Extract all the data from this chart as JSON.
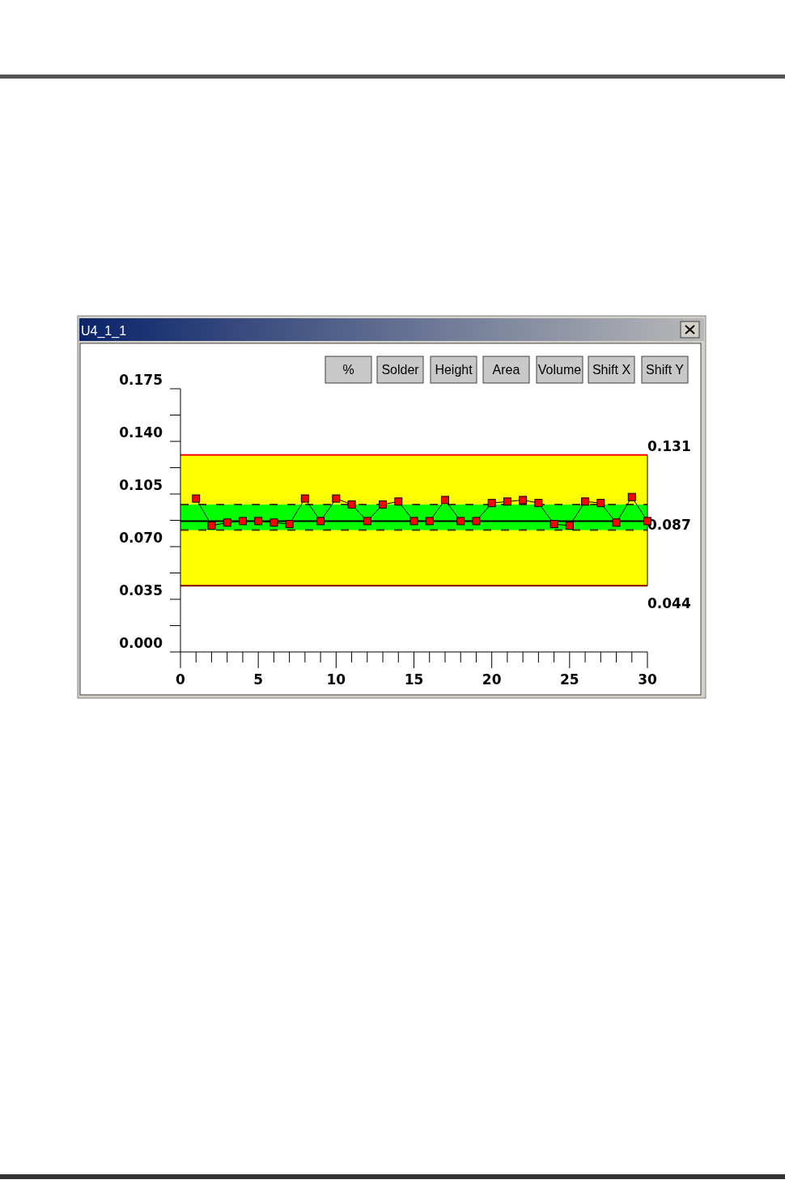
{
  "chart_data": {
    "type": "line",
    "title": "U4_1_1",
    "annotations": [
      "%",
      "Solder",
      "Height",
      "Area",
      "Volume",
      "Shift X",
      "Shift Y"
    ],
    "x": [
      1,
      2,
      3,
      4,
      5,
      6,
      7,
      8,
      9,
      10,
      11,
      12,
      13,
      14,
      15,
      16,
      17,
      18,
      19,
      20,
      21,
      22,
      23,
      24,
      25,
      26,
      27,
      28,
      29,
      30
    ],
    "series": [
      {
        "color": "#ff0000",
        "values": [
          0.102,
          0.084,
          0.086,
          0.087,
          0.087,
          0.086,
          0.085,
          0.102,
          0.087,
          0.102,
          0.098,
          0.087,
          0.098,
          0.1,
          0.087,
          0.087,
          0.101,
          0.087,
          0.087,
          0.099,
          0.1,
          0.101,
          0.099,
          0.085,
          0.084,
          0.1,
          0.099,
          0.086,
          0.103,
          0.087
        ]
      }
    ],
    "marker": "square",
    "line_style": "solid",
    "xlim": [
      0,
      30
    ],
    "ylim": [
      0,
      0.175
    ],
    "xticks": [
      0,
      {
        "value": 1,
        "label": null
      },
      {
        "value": 2,
        "label": null
      },
      {
        "value": 3,
        "label": null
      },
      {
        "value": 4,
        "label": null
      },
      5,
      {
        "value": 6,
        "label": null
      },
      {
        "value": 7,
        "label": null
      },
      {
        "value": 8,
        "label": null
      },
      {
        "value": 9,
        "label": null
      },
      10,
      {
        "value": 11,
        "label": null
      },
      {
        "value": 12,
        "label": null
      },
      {
        "value": 13,
        "label": null
      },
      {
        "value": 14,
        "label": null
      },
      15,
      {
        "value": 16,
        "label": null
      },
      {
        "value": 17,
        "label": null
      },
      {
        "value": 18,
        "label": null
      },
      {
        "value": 19,
        "label": null
      },
      20,
      {
        "value": 21,
        "label": null
      },
      {
        "value": 22,
        "label": null
      },
      {
        "value": 23,
        "label": null
      },
      {
        "value": 24,
        "label": null
      },
      25,
      {
        "value": 26,
        "label": null
      },
      {
        "value": 27,
        "label": null
      },
      {
        "value": 28,
        "label": null
      },
      {
        "value": 29,
        "label": null
      },
      30
    ],
    "yticks": [
      {
        "value": 0,
        "label": "0.000"
      },
      {
        "value": 0.0175,
        "label": null
      },
      {
        "value": 0.035,
        "label": "0.035"
      },
      {
        "value": 0.0525,
        "label": null
      },
      {
        "value": 0.07,
        "label": "0.070"
      },
      {
        "value": 0.0875,
        "label": null
      },
      {
        "value": 0.105,
        "label": "0.105"
      },
      {
        "value": 0.1225,
        "label": null
      },
      {
        "value": 0.14,
        "label": "0.140"
      },
      {
        "value": 0.1575,
        "label": null
      },
      {
        "value": 0.175,
        "label": "0.175"
      }
    ],
    "bands": [
      {
        "axis": "y",
        "from": 0.044,
        "to": 0.131,
        "color": "#ffff00"
      },
      {
        "axis": "y",
        "from": 0.081,
        "to": 0.098,
        "color": "#00ff00"
      }
    ],
    "ref_lines": [
      {
        "axis": "y",
        "value": 0.131,
        "label": "0.131",
        "color": "#ff0000"
      },
      {
        "axis": "y",
        "value": 0.044,
        "label": "0.044",
        "color": "#800000"
      },
      {
        "axis": "y",
        "value": 0.087,
        "label": "0.087",
        "color": "#000000"
      },
      {
        "axis": "y",
        "value": 0.098,
        "color": "#404000",
        "line_style": "dashed"
      },
      {
        "axis": "y",
        "value": 0.081,
        "color": "#404000",
        "line_style": "dashed"
      }
    ]
  }
}
